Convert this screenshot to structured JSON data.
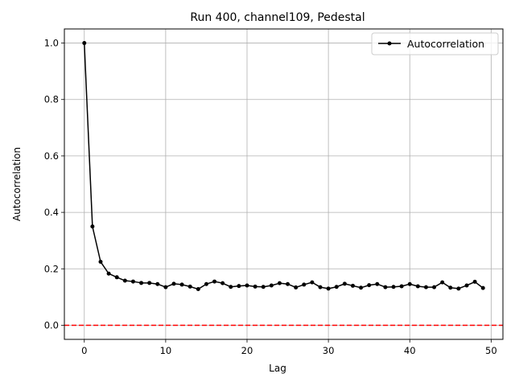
{
  "chart_data": {
    "type": "line",
    "title": "Run 400, channel109, Pedestal",
    "xlabel": "Lag",
    "ylabel": "Autocorrelation",
    "xlim": [
      -2.45,
      51.45
    ],
    "ylim": [
      -0.05,
      1.05
    ],
    "x_ticks": [
      0,
      10,
      20,
      30,
      40,
      50
    ],
    "x_tick_labels": [
      "0",
      "10",
      "20",
      "30",
      "40",
      "50"
    ],
    "y_ticks": [
      0.0,
      0.2,
      0.4,
      0.6,
      0.8,
      1.0
    ],
    "y_tick_labels": [
      "0.0",
      "0.2",
      "0.4",
      "0.6",
      "0.8",
      "1.0"
    ],
    "grid": true,
    "legend_position": "top-right",
    "reference_line": {
      "y": 0.0,
      "color": "#ff0000",
      "style": "dashed"
    },
    "series": [
      {
        "name": "Autocorrelation",
        "color": "#000000",
        "marker": "circle",
        "x": [
          0,
          1,
          2,
          3,
          4,
          5,
          6,
          7,
          8,
          9,
          10,
          11,
          12,
          13,
          14,
          15,
          16,
          17,
          18,
          19,
          20,
          21,
          22,
          23,
          24,
          25,
          26,
          27,
          28,
          29,
          30,
          31,
          32,
          33,
          34,
          35,
          36,
          37,
          38,
          39,
          40,
          41,
          42,
          43,
          44,
          45,
          46,
          47,
          48,
          49
        ],
        "values": [
          1.0,
          0.35,
          0.225,
          0.183,
          0.17,
          0.158,
          0.155,
          0.15,
          0.15,
          0.146,
          0.135,
          0.147,
          0.144,
          0.137,
          0.128,
          0.146,
          0.155,
          0.149,
          0.136,
          0.139,
          0.141,
          0.137,
          0.136,
          0.141,
          0.149,
          0.146,
          0.134,
          0.144,
          0.152,
          0.135,
          0.13,
          0.136,
          0.147,
          0.14,
          0.133,
          0.142,
          0.146,
          0.135,
          0.136,
          0.138,
          0.146,
          0.138,
          0.135,
          0.135,
          0.152,
          0.133,
          0.13,
          0.141,
          0.154,
          0.132
        ]
      }
    ]
  }
}
